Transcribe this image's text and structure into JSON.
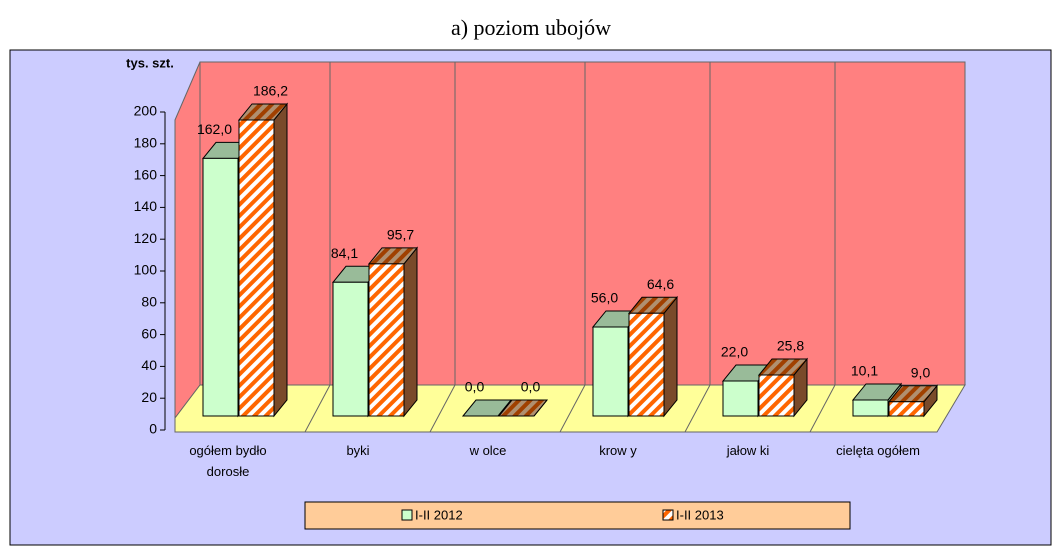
{
  "chart_data": {
    "type": "bar3d",
    "title": "a) poziom ubojów",
    "y_label": "tys. szt.",
    "categories": [
      "ogółem bydło dorosłe",
      "byki",
      "w olce",
      "krow y",
      "jałow ki",
      "cielęta ogółem"
    ],
    "series": [
      {
        "name": "I-II 2012",
        "color": "#ccffcc",
        "values": [
          162.0,
          84.1,
          0.0,
          56.0,
          22.0,
          10.1
        ],
        "value_labels": [
          "162,0",
          "84,1",
          "0,0",
          "56,0",
          "22,0",
          "10,1"
        ]
      },
      {
        "name": "I-II 2013",
        "color": "#ff6600",
        "values": [
          186.2,
          95.7,
          0.0,
          64.6,
          25.8,
          9.0
        ],
        "value_labels": [
          "186,2",
          "95,7",
          "0,0",
          "64,6",
          "25,8",
          "9,0"
        ]
      }
    ],
    "ylim": [
      0,
      200
    ],
    "yticks": [
      0,
      20,
      40,
      60,
      80,
      100,
      120,
      140,
      160,
      180,
      200
    ]
  }
}
